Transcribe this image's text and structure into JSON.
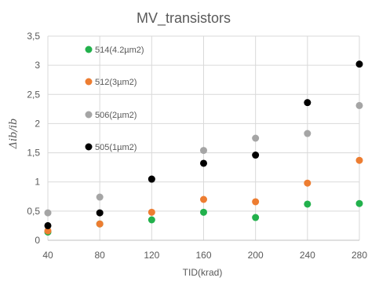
{
  "chart_data": {
    "type": "scatter",
    "title": "MV_transistors",
    "xlabel": "TID(krad)",
    "ylabel": "Δib/ib",
    "x": [
      40,
      80,
      120,
      160,
      200,
      240,
      280
    ],
    "xlim": [
      40,
      280
    ],
    "ylim": [
      0,
      3.5
    ],
    "x_ticks": [
      "40",
      "80",
      "120",
      "160",
      "200",
      "240",
      "280"
    ],
    "y_ticks": [
      "0",
      "0,5",
      "1",
      "1,5",
      "2",
      "2,5",
      "3",
      "3,5"
    ],
    "grid": true,
    "legend_position": "inside-left",
    "series": [
      {
        "name": "514(4.2µm2)",
        "color": "#22b14c",
        "values": [
          0.14,
          0.28,
          0.35,
          0.48,
          0.39,
          0.62,
          0.63
        ]
      },
      {
        "name": "512(3µm2)",
        "color": "#ed7d31",
        "values": [
          0.16,
          0.28,
          0.48,
          0.7,
          0.66,
          0.98,
          1.37
        ]
      },
      {
        "name": "506(2µm2)",
        "color": "#a5a5a5",
        "values": [
          0.47,
          0.74,
          1.04,
          1.54,
          1.75,
          1.83,
          2.31
        ]
      },
      {
        "name": "505(1µm2)",
        "color": "#000000",
        "values": [
          0.25,
          0.47,
          1.05,
          1.32,
          1.46,
          2.36,
          3.02
        ]
      }
    ]
  }
}
